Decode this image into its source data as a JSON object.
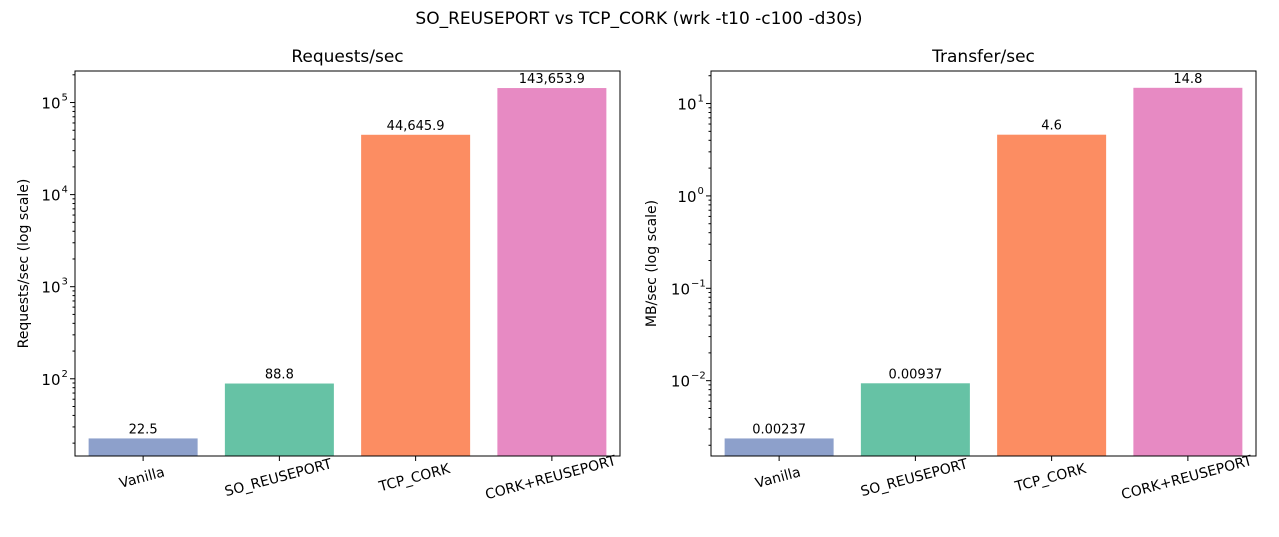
{
  "figure": {
    "suptitle": "SO_REUSEPORT vs TCP_CORK (wrk -t10 -c100 -d30s)"
  },
  "chart_data": [
    {
      "type": "bar",
      "title": "Requests/sec",
      "xlabel": "",
      "ylabel": "Requests/sec (log scale)",
      "yscale": "log",
      "ylim": [
        14.5,
        220000
      ],
      "major_ticks": [
        {
          "base": "10",
          "exp": "2",
          "value": 100
        },
        {
          "base": "10",
          "exp": "3",
          "value": 1000
        },
        {
          "base": "10",
          "exp": "4",
          "value": 10000
        },
        {
          "base": "10",
          "exp": "5",
          "value": 100000
        }
      ],
      "categories": [
        "Vanilla",
        "SO_REUSEPORT",
        "TCP_CORK",
        "CORK+REUSEPORT"
      ],
      "values": [
        22.5,
        88.8,
        44645.9,
        143653.9
      ],
      "value_labels": [
        "22.5",
        "88.8",
        "44,645.9",
        "143,653.9"
      ],
      "colors": [
        "#8da0cb",
        "#66c2a5",
        "#fc8d62",
        "#e78ac3"
      ],
      "grid": false
    },
    {
      "type": "bar",
      "title": "Transfer/sec",
      "xlabel": "",
      "ylabel": "MB/sec (log scale)",
      "yscale": "log",
      "ylim": [
        0.00153,
        22.5
      ],
      "major_ticks": [
        {
          "base": "10",
          "exp": "−2",
          "value": 0.01
        },
        {
          "base": "10",
          "exp": "−1",
          "value": 0.1
        },
        {
          "base": "10",
          "exp": "0",
          "value": 1
        },
        {
          "base": "10",
          "exp": "1",
          "value": 10
        }
      ],
      "categories": [
        "Vanilla",
        "SO_REUSEPORT",
        "TCP_CORK",
        "CORK+REUSEPORT"
      ],
      "values": [
        0.00237,
        0.00937,
        4.6,
        14.8
      ],
      "value_labels": [
        "0.00237",
        "0.00937",
        "4.6",
        "14.8"
      ],
      "colors": [
        "#8da0cb",
        "#66c2a5",
        "#fc8d62",
        "#e78ac3"
      ],
      "grid": false
    }
  ]
}
